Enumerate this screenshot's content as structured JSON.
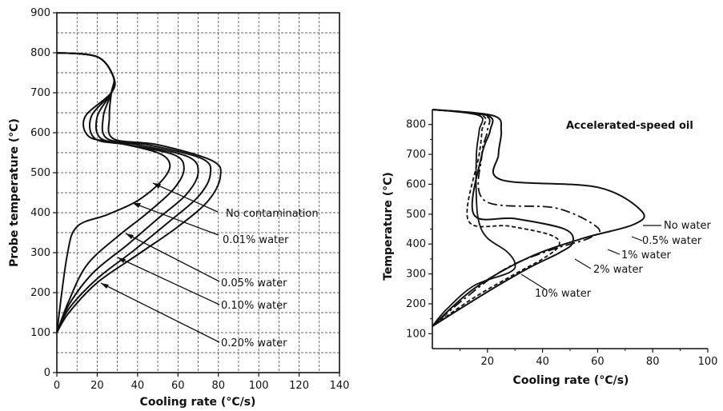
{
  "chart_data": [
    {
      "type": "line",
      "title": "",
      "xlabel": "Cooling rate (°C/s)",
      "ylabel": "Probe temperature (°C)",
      "xlim": [
        0,
        140
      ],
      "ylim": [
        0,
        900
      ],
      "xticks": [
        "0",
        "20",
        "40",
        "60",
        "80",
        "100",
        "120",
        "140"
      ],
      "yticks": [
        "0",
        "100",
        "200",
        "300",
        "400",
        "500",
        "600",
        "700",
        "800",
        "900"
      ],
      "grid": true,
      "series": [
        {
          "name": "No contamination",
          "x": [
            0,
            20,
            28,
            27,
            14,
            16,
            30,
            50,
            56,
            52,
            40,
            25,
            10,
            5,
            0
          ],
          "y": [
            800,
            790,
            740,
            700,
            640,
            590,
            575,
            550,
            520,
            480,
            430,
            395,
            365,
            290,
            100
          ]
        },
        {
          "name": "0.01% water",
          "x": [
            0,
            20,
            28,
            27,
            17,
            19,
            35,
            58,
            63,
            58,
            45,
            30,
            15,
            6,
            0
          ],
          "y": [
            800,
            790,
            740,
            700,
            640,
            585,
            570,
            545,
            510,
            460,
            400,
            340,
            270,
            180,
            100
          ]
        },
        {
          "name": "0.05% water",
          "x": [
            0,
            20,
            28,
            27,
            20,
            22,
            40,
            65,
            70,
            64,
            50,
            35,
            18,
            6,
            0
          ],
          "y": [
            800,
            790,
            740,
            700,
            640,
            585,
            570,
            540,
            500,
            445,
            385,
            320,
            250,
            170,
            100
          ]
        },
        {
          "name": "0.10% water",
          "x": [
            0,
            20,
            28,
            27,
            23,
            25,
            45,
            72,
            76,
            70,
            55,
            38,
            20,
            6,
            0
          ],
          "y": [
            800,
            790,
            740,
            700,
            640,
            585,
            570,
            535,
            495,
            440,
            375,
            305,
            235,
            160,
            100
          ]
        },
        {
          "name": "0.20% water",
          "x": [
            0,
            20,
            28,
            27,
            26,
            28,
            50,
            77,
            81,
            75,
            60,
            40,
            20,
            6,
            0
          ],
          "y": [
            800,
            790,
            740,
            700,
            640,
            585,
            570,
            530,
            490,
            430,
            365,
            295,
            225,
            150,
            100
          ]
        }
      ],
      "annotations": [
        "No contamination",
        "0.01% water",
        "0.05% water",
        "0.10% water",
        "0.20% water"
      ]
    },
    {
      "type": "line",
      "title": "Accelerated-speed oil",
      "xlabel": "Cooling rate (°C/s)",
      "ylabel": "Temperature (°C)",
      "xlim": [
        0,
        100
      ],
      "ylim": [
        50,
        850
      ],
      "xticks": [
        "20",
        "40",
        "60",
        "80",
        "100"
      ],
      "yticks": [
        "100",
        "200",
        "300",
        "400",
        "500",
        "600",
        "700",
        "800"
      ],
      "grid": false,
      "series": [
        {
          "name": "No water",
          "x": [
            0,
            22,
            25,
            24,
            25,
            60,
            76,
            73,
            55,
            35,
            15,
            0
          ],
          "y": [
            850,
            830,
            780,
            700,
            615,
            590,
            510,
            465,
            420,
            355,
            250,
            125
          ]
        },
        {
          "name": "0.5% water",
          "x": [
            0,
            19,
            20,
            18,
            19,
            45,
            60,
            57,
            43,
            27,
            12,
            0
          ],
          "y": [
            850,
            830,
            780,
            700,
            545,
            520,
            455,
            420,
            380,
            320,
            220,
            125
          ]
        },
        {
          "name": "1% water",
          "x": [
            0,
            20,
            21,
            18,
            15,
            30,
            48,
            51,
            46,
            35,
            20,
            0
          ],
          "y": [
            850,
            830,
            780,
            700,
            500,
            485,
            450,
            405,
            370,
            320,
            240,
            125
          ]
        },
        {
          "name": "2% water",
          "x": [
            0,
            18,
            18,
            17,
            13,
            28,
            43,
            46,
            40,
            30,
            15,
            0
          ],
          "y": [
            850,
            830,
            780,
            700,
            480,
            460,
            430,
            395,
            350,
            300,
            220,
            125
          ]
        },
        {
          "name": "10% water",
          "x": [
            0,
            17,
            17,
            16,
            16,
            17,
            20,
            27,
            30,
            28,
            15,
            5,
            0
          ],
          "y": [
            850,
            830,
            780,
            700,
            550,
            470,
            420,
            375,
            335,
            305,
            260,
            180,
            125
          ]
        }
      ],
      "annotations": [
        "No water",
        "0.5% water",
        "1% water",
        "2% water",
        "10% water"
      ]
    }
  ]
}
